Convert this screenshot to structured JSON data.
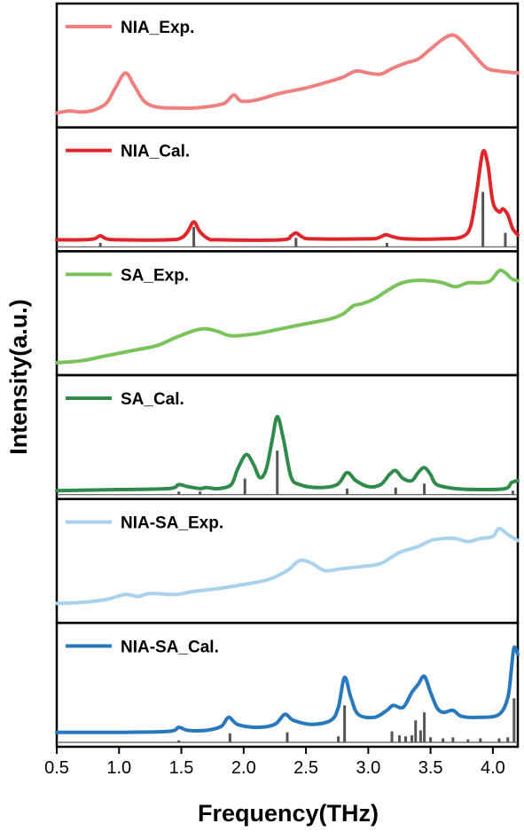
{
  "chart_data": {
    "type": "line",
    "xlabel": "Frequency(THz)",
    "ylabel": "Intensity(a.u.)",
    "xlim": [
      0.5,
      4.2
    ],
    "ylim": [
      0,
      1
    ],
    "x_ticks": [
      "0.5",
      "1.0",
      "1.5",
      "2.0",
      "2.5",
      "3.0",
      "3.5",
      "4.0"
    ],
    "panels": [
      {
        "name": "NIA_Exp.",
        "color": "#f08080",
        "curve": [
          [
            0.5,
            0.1
          ],
          [
            0.6,
            0.12
          ],
          [
            0.7,
            0.11
          ],
          [
            0.8,
            0.13
          ],
          [
            0.9,
            0.2
          ],
          [
            0.97,
            0.35
          ],
          [
            1.05,
            0.5
          ],
          [
            1.12,
            0.38
          ],
          [
            1.2,
            0.22
          ],
          [
            1.3,
            0.16
          ],
          [
            1.45,
            0.15
          ],
          [
            1.6,
            0.15
          ],
          [
            1.75,
            0.17
          ],
          [
            1.85,
            0.2
          ],
          [
            1.92,
            0.28
          ],
          [
            1.98,
            0.22
          ],
          [
            2.1,
            0.23
          ],
          [
            2.3,
            0.3
          ],
          [
            2.5,
            0.35
          ],
          [
            2.7,
            0.42
          ],
          [
            2.8,
            0.46
          ],
          [
            2.9,
            0.52
          ],
          [
            3.0,
            0.5
          ],
          [
            3.1,
            0.49
          ],
          [
            3.2,
            0.55
          ],
          [
            3.3,
            0.6
          ],
          [
            3.4,
            0.64
          ],
          [
            3.5,
            0.74
          ],
          [
            3.6,
            0.84
          ],
          [
            3.68,
            0.88
          ],
          [
            3.75,
            0.82
          ],
          [
            3.85,
            0.68
          ],
          [
            3.95,
            0.55
          ],
          [
            4.05,
            0.52
          ],
          [
            4.2,
            0.5
          ]
        ],
        "sticks": []
      },
      {
        "name": "NIA_Cal.",
        "color": "#e0262a",
        "curve": [
          [
            0.5,
            0.07
          ],
          [
            0.7,
            0.07
          ],
          [
            0.8,
            0.08
          ],
          [
            0.85,
            0.11
          ],
          [
            0.9,
            0.08
          ],
          [
            1.0,
            0.07
          ],
          [
            1.4,
            0.07
          ],
          [
            1.5,
            0.09
          ],
          [
            1.55,
            0.15
          ],
          [
            1.6,
            0.25
          ],
          [
            1.65,
            0.15
          ],
          [
            1.72,
            0.08
          ],
          [
            1.8,
            0.07
          ],
          [
            2.3,
            0.07
          ],
          [
            2.38,
            0.11
          ],
          [
            2.42,
            0.14
          ],
          [
            2.47,
            0.1
          ],
          [
            2.55,
            0.08
          ],
          [
            3.0,
            0.08
          ],
          [
            3.08,
            0.09
          ],
          [
            3.14,
            0.12
          ],
          [
            3.2,
            0.1
          ],
          [
            3.3,
            0.08
          ],
          [
            3.6,
            0.08
          ],
          [
            3.75,
            0.1
          ],
          [
            3.82,
            0.2
          ],
          [
            3.87,
            0.55
          ],
          [
            3.92,
            0.95
          ],
          [
            3.96,
            0.82
          ],
          [
            4.0,
            0.45
          ],
          [
            4.05,
            0.35
          ],
          [
            4.08,
            0.38
          ],
          [
            4.12,
            0.32
          ],
          [
            4.16,
            0.18
          ],
          [
            4.2,
            0.12
          ]
        ],
        "sticks": [
          [
            0.85,
            0.04
          ],
          [
            1.6,
            0.2
          ],
          [
            2.42,
            0.09
          ],
          [
            3.15,
            0.04
          ],
          [
            3.92,
            0.55
          ],
          [
            4.1,
            0.14
          ]
        ]
      },
      {
        "name": "SA_Exp.",
        "color": "#7ac35a",
        "curve": [
          [
            0.5,
            0.08
          ],
          [
            0.7,
            0.1
          ],
          [
            0.9,
            0.15
          ],
          [
            1.1,
            0.2
          ],
          [
            1.3,
            0.25
          ],
          [
            1.45,
            0.33
          ],
          [
            1.6,
            0.4
          ],
          [
            1.7,
            0.42
          ],
          [
            1.8,
            0.39
          ],
          [
            1.9,
            0.35
          ],
          [
            2.1,
            0.37
          ],
          [
            2.3,
            0.42
          ],
          [
            2.5,
            0.47
          ],
          [
            2.7,
            0.52
          ],
          [
            2.8,
            0.57
          ],
          [
            2.88,
            0.65
          ],
          [
            2.95,
            0.67
          ],
          [
            3.05,
            0.72
          ],
          [
            3.15,
            0.8
          ],
          [
            3.25,
            0.87
          ],
          [
            3.35,
            0.9
          ],
          [
            3.5,
            0.9
          ],
          [
            3.6,
            0.88
          ],
          [
            3.7,
            0.84
          ],
          [
            3.8,
            0.88
          ],
          [
            3.9,
            0.88
          ],
          [
            3.98,
            0.9
          ],
          [
            4.05,
            1.0
          ],
          [
            4.1,
            0.98
          ],
          [
            4.15,
            0.92
          ],
          [
            4.2,
            0.9
          ]
        ],
        "sticks": []
      },
      {
        "name": "SA_Cal.",
        "color": "#2e8b4a",
        "curve": [
          [
            0.5,
            0.04
          ],
          [
            1.0,
            0.05
          ],
          [
            1.4,
            0.06
          ],
          [
            1.48,
            0.1
          ],
          [
            1.55,
            0.08
          ],
          [
            1.65,
            0.06
          ],
          [
            1.7,
            0.07
          ],
          [
            1.8,
            0.06
          ],
          [
            1.9,
            0.1
          ],
          [
            1.95,
            0.25
          ],
          [
            2.02,
            0.4
          ],
          [
            2.08,
            0.3
          ],
          [
            2.13,
            0.17
          ],
          [
            2.18,
            0.25
          ],
          [
            2.23,
            0.55
          ],
          [
            2.27,
            0.78
          ],
          [
            2.32,
            0.55
          ],
          [
            2.38,
            0.18
          ],
          [
            2.45,
            0.1
          ],
          [
            2.6,
            0.07
          ],
          [
            2.75,
            0.1
          ],
          [
            2.83,
            0.22
          ],
          [
            2.9,
            0.14
          ],
          [
            3.0,
            0.08
          ],
          [
            3.1,
            0.1
          ],
          [
            3.17,
            0.2
          ],
          [
            3.22,
            0.24
          ],
          [
            3.28,
            0.16
          ],
          [
            3.35,
            0.14
          ],
          [
            3.4,
            0.22
          ],
          [
            3.45,
            0.27
          ],
          [
            3.5,
            0.2
          ],
          [
            3.55,
            0.1
          ],
          [
            3.7,
            0.06
          ],
          [
            3.9,
            0.05
          ],
          [
            4.1,
            0.06
          ],
          [
            4.15,
            0.12
          ],
          [
            4.2,
            0.14
          ]
        ],
        "sticks": [
          [
            1.48,
            0.03
          ],
          [
            1.65,
            0.03
          ],
          [
            2.01,
            0.16
          ],
          [
            2.27,
            0.44
          ],
          [
            2.83,
            0.06
          ],
          [
            3.22,
            0.07
          ],
          [
            3.45,
            0.11
          ],
          [
            4.16,
            0.04
          ]
        ]
      },
      {
        "name": "NIA-SA_Exp.",
        "color": "#a9d2ee",
        "curve": [
          [
            0.5,
            0.15
          ],
          [
            0.7,
            0.16
          ],
          [
            0.9,
            0.19
          ],
          [
            1.05,
            0.24
          ],
          [
            1.15,
            0.22
          ],
          [
            1.25,
            0.25
          ],
          [
            1.45,
            0.24
          ],
          [
            1.6,
            0.27
          ],
          [
            1.8,
            0.3
          ],
          [
            2.0,
            0.34
          ],
          [
            2.2,
            0.39
          ],
          [
            2.35,
            0.48
          ],
          [
            2.45,
            0.58
          ],
          [
            2.55,
            0.55
          ],
          [
            2.65,
            0.48
          ],
          [
            2.8,
            0.5
          ],
          [
            2.95,
            0.52
          ],
          [
            3.1,
            0.55
          ],
          [
            3.25,
            0.66
          ],
          [
            3.4,
            0.72
          ],
          [
            3.5,
            0.78
          ],
          [
            3.6,
            0.8
          ],
          [
            3.7,
            0.8
          ],
          [
            3.8,
            0.77
          ],
          [
            3.9,
            0.8
          ],
          [
            4.0,
            0.82
          ],
          [
            4.05,
            0.9
          ],
          [
            4.12,
            0.84
          ],
          [
            4.2,
            0.78
          ]
        ],
        "sticks": []
      },
      {
        "name": "NIA-SA_Cal.",
        "color": "#2878bd",
        "curve": [
          [
            0.5,
            0.1
          ],
          [
            0.8,
            0.1
          ],
          [
            1.0,
            0.1
          ],
          [
            1.4,
            0.11
          ],
          [
            1.48,
            0.15
          ],
          [
            1.55,
            0.12
          ],
          [
            1.7,
            0.12
          ],
          [
            1.82,
            0.16
          ],
          [
            1.88,
            0.25
          ],
          [
            1.95,
            0.18
          ],
          [
            2.1,
            0.15
          ],
          [
            2.25,
            0.18
          ],
          [
            2.33,
            0.28
          ],
          [
            2.4,
            0.22
          ],
          [
            2.55,
            0.18
          ],
          [
            2.7,
            0.22
          ],
          [
            2.76,
            0.35
          ],
          [
            2.81,
            0.65
          ],
          [
            2.86,
            0.45
          ],
          [
            2.92,
            0.28
          ],
          [
            3.05,
            0.25
          ],
          [
            3.15,
            0.32
          ],
          [
            3.2,
            0.37
          ],
          [
            3.28,
            0.35
          ],
          [
            3.35,
            0.5
          ],
          [
            3.4,
            0.58
          ],
          [
            3.45,
            0.66
          ],
          [
            3.5,
            0.5
          ],
          [
            3.55,
            0.35
          ],
          [
            3.6,
            0.3
          ],
          [
            3.68,
            0.32
          ],
          [
            3.75,
            0.26
          ],
          [
            3.9,
            0.25
          ],
          [
            4.05,
            0.28
          ],
          [
            4.12,
            0.45
          ],
          [
            4.15,
            0.75
          ],
          [
            4.17,
            0.95
          ],
          [
            4.2,
            0.88
          ]
        ],
        "sticks": [
          [
            1.48,
            0.02
          ],
          [
            1.89,
            0.09
          ],
          [
            2.35,
            0.1
          ],
          [
            2.76,
            0.06
          ],
          [
            2.81,
            0.37
          ],
          [
            3.19,
            0.11
          ],
          [
            3.25,
            0.07
          ],
          [
            3.3,
            0.06
          ],
          [
            3.35,
            0.07
          ],
          [
            3.38,
            0.22
          ],
          [
            3.42,
            0.12
          ],
          [
            3.45,
            0.3
          ],
          [
            3.5,
            0.05
          ],
          [
            3.6,
            0.04
          ],
          [
            3.68,
            0.05
          ],
          [
            3.8,
            0.03
          ],
          [
            3.9,
            0.04
          ],
          [
            4.05,
            0.04
          ],
          [
            4.12,
            0.05
          ],
          [
            4.17,
            0.44
          ]
        ]
      }
    ]
  }
}
